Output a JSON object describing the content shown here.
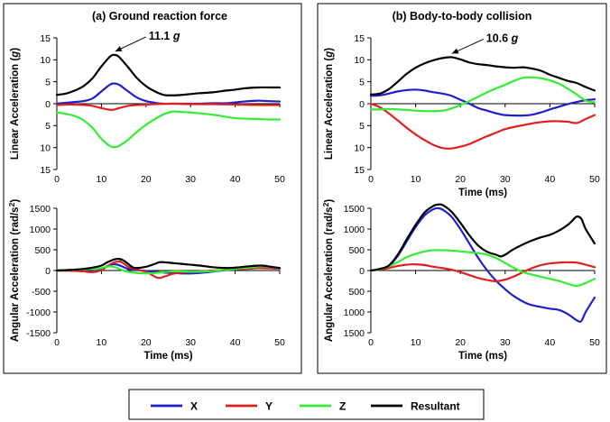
{
  "chart_data": [
    {
      "type": "line",
      "title": "(a) Ground reaction force",
      "xlabel": "",
      "ylabel": "Linear Acceleration (g)",
      "ylabel_unit": "g",
      "xlim": [
        0,
        50
      ],
      "ylim": [
        -15,
        15
      ],
      "xticks": [
        0,
        10,
        20,
        30,
        40,
        50
      ],
      "yticks": [
        -15,
        -10,
        -5,
        0,
        5,
        10,
        15
      ],
      "ytick_labels": [
        "15",
        "10",
        "5",
        "0",
        "5",
        "10",
        "15"
      ],
      "annotation": {
        "value": "11.1",
        "unit": "g",
        "x": 12.5,
        "y": 11.1
      },
      "series": [
        {
          "name": "X",
          "color": "#1f1fcf",
          "x": [
            0,
            2,
            4,
            6,
            8,
            10,
            12,
            13,
            14,
            16,
            18,
            20,
            22,
            24,
            26,
            28,
            30,
            32,
            35,
            38,
            40,
            42,
            45,
            47,
            50
          ],
          "y": [
            0,
            0.2,
            0.4,
            0.6,
            1.2,
            2.8,
            4.4,
            4.6,
            4.3,
            2.8,
            1.4,
            0.6,
            0.2,
            0,
            0,
            0,
            0,
            0,
            0.1,
            0.1,
            0.3,
            0.5,
            0.7,
            0.6,
            0.5
          ]
        },
        {
          "name": "Y",
          "color": "#e02020",
          "x": [
            0,
            2,
            4,
            6,
            8,
            10,
            12,
            13,
            14,
            16,
            18,
            20,
            22,
            26,
            30,
            35,
            40,
            45,
            50
          ],
          "y": [
            -0.3,
            -0.2,
            -0.2,
            -0.3,
            -0.5,
            -1.0,
            -1.4,
            -1.3,
            -1.0,
            -0.5,
            -0.3,
            -0.2,
            -0.1,
            0,
            -0.1,
            -0.1,
            -0.2,
            -0.3,
            -0.3
          ]
        },
        {
          "name": "Z",
          "color": "#33ee33",
          "x": [
            0,
            2,
            4,
            6,
            8,
            10,
            12,
            13,
            14,
            16,
            18,
            20,
            22,
            24,
            26,
            28,
            30,
            32,
            35,
            38,
            40,
            42,
            45,
            48,
            50
          ],
          "y": [
            -2,
            -2.3,
            -2.8,
            -3.8,
            -5.5,
            -8,
            -9.7,
            -9.9,
            -9.6,
            -8.2,
            -6.4,
            -4.8,
            -3.5,
            -2.4,
            -1.8,
            -1.9,
            -2,
            -2.2,
            -2.5,
            -3,
            -3.3,
            -3.4,
            -3.5,
            -3.6,
            -3.6
          ]
        },
        {
          "name": "Resultant",
          "color": "#000000",
          "x": [
            0,
            2,
            4,
            6,
            8,
            10,
            12,
            13,
            14,
            16,
            18,
            20,
            22,
            24,
            26,
            28,
            30,
            32,
            35,
            38,
            40,
            42,
            45,
            48,
            50
          ],
          "y": [
            2,
            2.3,
            3,
            4,
            5.8,
            8.5,
            10.8,
            11.1,
            10.6,
            8.3,
            5.8,
            4,
            2.8,
            2,
            1.9,
            2,
            2.2,
            2.4,
            2.6,
            3,
            3.2,
            3.5,
            3.7,
            3.7,
            3.7
          ]
        }
      ]
    },
    {
      "type": "line",
      "title": "(b) Body-to-body collision",
      "xlabel": "Time (ms)",
      "ylabel": "Linear Acceleration (g)",
      "ylabel_unit": "g",
      "xlim": [
        0,
        50
      ],
      "ylim": [
        -15,
        15
      ],
      "xticks": [
        0,
        10,
        20,
        30,
        40,
        50
      ],
      "yticks": [
        -15,
        -10,
        -5,
        0,
        5,
        10,
        15
      ],
      "ytick_labels": [
        "15",
        "10",
        "5",
        "0",
        "5",
        "10",
        "15"
      ],
      "annotation": {
        "value": "10.6",
        "unit": "g",
        "x": 17.5,
        "y": 10.6
      },
      "series": [
        {
          "name": "X",
          "color": "#1f1fcf",
          "x": [
            0,
            2,
            4,
            6,
            8,
            10,
            12,
            14,
            16,
            18,
            20,
            22,
            24,
            26,
            28,
            30,
            32,
            34,
            36,
            38,
            40,
            42,
            44,
            46,
            48,
            50
          ],
          "y": [
            1.8,
            1.9,
            2.3,
            2.8,
            3.1,
            3.2,
            3,
            2.6,
            2.3,
            1.8,
            0.9,
            0,
            -1,
            -1.6,
            -2.2,
            -2.6,
            -2.7,
            -2.7,
            -2.5,
            -2,
            -1.3,
            -0.7,
            -0.1,
            0.4,
            0.8,
            1
          ]
        },
        {
          "name": "Y",
          "color": "#e02020",
          "x": [
            0,
            2,
            4,
            6,
            8,
            10,
            12,
            14,
            16,
            18,
            20,
            22,
            24,
            26,
            28,
            30,
            32,
            34,
            36,
            38,
            40,
            42,
            44,
            46,
            48,
            50
          ],
          "y": [
            0,
            -0.8,
            -2.2,
            -3.8,
            -5.5,
            -7,
            -8.3,
            -9.4,
            -10.1,
            -10.2,
            -9.8,
            -9.2,
            -8.3,
            -7.4,
            -6.6,
            -5.8,
            -5.3,
            -4.9,
            -4.5,
            -4.2,
            -4,
            -4,
            -4.1,
            -4.4,
            -3.5,
            -2.6
          ]
        },
        {
          "name": "Z",
          "color": "#33ee33",
          "x": [
            0,
            2,
            4,
            6,
            8,
            10,
            12,
            14,
            16,
            18,
            20,
            22,
            24,
            26,
            28,
            30,
            32,
            34,
            36,
            38,
            40,
            42,
            44,
            46,
            48,
            50
          ],
          "y": [
            -1.3,
            -1.3,
            -1.2,
            -1.3,
            -1.4,
            -1.6,
            -1.7,
            -1.7,
            -1.6,
            -1.1,
            -0.3,
            0.6,
            1.6,
            2.6,
            3.5,
            4.3,
            5.2,
            5.9,
            6,
            5.8,
            5.3,
            4.6,
            3.4,
            2.1,
            0.7,
            0.3
          ]
        },
        {
          "name": "Resultant",
          "color": "#000000",
          "x": [
            0,
            2,
            4,
            6,
            8,
            10,
            12,
            14,
            16,
            18,
            20,
            22,
            24,
            26,
            28,
            30,
            32,
            34,
            36,
            38,
            40,
            42,
            44,
            46,
            48,
            50
          ],
          "y": [
            2.1,
            2.3,
            3.3,
            5,
            6.8,
            8.2,
            9.2,
            9.9,
            10.4,
            10.6,
            10.1,
            9.4,
            9,
            8.8,
            8.5,
            8.3,
            8.2,
            8.3,
            8,
            7.5,
            6.6,
            5.9,
            5.2,
            4.7,
            3.8,
            3
          ]
        }
      ]
    },
    {
      "type": "line",
      "title": "",
      "xlabel": "Time (ms)",
      "ylabel": "Angular Acceleration (rad/s2)",
      "ylabel_unit": "rad/s",
      "ylabel_sup": "2",
      "xlim": [
        0,
        50
      ],
      "ylim": [
        -1500,
        1500
      ],
      "xticks": [
        0,
        10,
        20,
        30,
        40,
        50
      ],
      "yticks": [
        -1500,
        -1000,
        -500,
        0,
        500,
        1000,
        1500
      ],
      "ytick_labels": [
        "-1500",
        "-1000",
        "-500",
        "0",
        "500",
        "1000",
        "1500"
      ],
      "series": [
        {
          "name": "X",
          "color": "#1f1fcf",
          "x": [
            0,
            2,
            4,
            6,
            8,
            10,
            11,
            12,
            13,
            14,
            15,
            16,
            17,
            18,
            20,
            22,
            24,
            26,
            28,
            30,
            32,
            34,
            36,
            38,
            40,
            42,
            44,
            46,
            48,
            50
          ],
          "y": [
            0,
            5,
            10,
            -10,
            -20,
            20,
            90,
            140,
            150,
            130,
            80,
            40,
            20,
            10,
            -10,
            -30,
            -50,
            -60,
            -70,
            -70,
            -60,
            -40,
            -10,
            10,
            30,
            40,
            50,
            80,
            70,
            50
          ]
        },
        {
          "name": "Y",
          "color": "#e02020",
          "x": [
            0,
            2,
            4,
            6,
            8,
            10,
            11,
            12,
            13,
            14,
            15,
            16,
            17,
            18,
            20,
            22,
            23,
            24,
            26,
            28,
            30,
            32,
            35,
            38,
            40,
            42,
            45,
            48,
            50
          ],
          "y": [
            0,
            -5,
            -10,
            -20,
            -40,
            10,
            80,
            150,
            200,
            220,
            170,
            90,
            50,
            20,
            -30,
            -150,
            -180,
            -150,
            -80,
            -50,
            -30,
            -20,
            0,
            20,
            30,
            40,
            60,
            50,
            40
          ]
        },
        {
          "name": "Z",
          "color": "#33ee33",
          "x": [
            0,
            2,
            4,
            6,
            8,
            10,
            11,
            12,
            13,
            14,
            15,
            16,
            18,
            20,
            22,
            24,
            26,
            28,
            30,
            32,
            34,
            36,
            38,
            40,
            42,
            44,
            46,
            48,
            50
          ],
          "y": [
            0,
            10,
            20,
            30,
            40,
            60,
            90,
            100,
            80,
            40,
            0,
            -30,
            -60,
            -70,
            -60,
            -40,
            -20,
            -20,
            -30,
            -30,
            -20,
            0,
            20,
            40,
            60,
            80,
            100,
            80,
            50
          ]
        },
        {
          "name": "Resultant",
          "color": "#000000",
          "x": [
            0,
            2,
            4,
            6,
            8,
            10,
            11,
            12,
            13,
            14,
            15,
            16,
            17,
            18,
            20,
            22,
            23,
            24,
            26,
            28,
            30,
            32,
            35,
            38,
            40,
            42,
            44,
            46,
            48,
            50
          ],
          "y": [
            0,
            10,
            20,
            40,
            70,
            120,
            180,
            230,
            270,
            280,
            240,
            160,
            80,
            60,
            90,
            160,
            200,
            200,
            180,
            160,
            140,
            120,
            80,
            60,
            70,
            90,
            110,
            120,
            90,
            60
          ]
        }
      ]
    },
    {
      "type": "line",
      "title": "",
      "xlabel": "Time (ms)",
      "ylabel": "Angular Acceleration (rad/s2)",
      "ylabel_unit": "rad/s",
      "ylabel_sup": "2",
      "xlim": [
        0,
        50
      ],
      "ylim": [
        -1500,
        1500
      ],
      "xticks": [
        0,
        10,
        20,
        30,
        40,
        50
      ],
      "yticks": [
        -1500,
        -1000,
        -500,
        0,
        500,
        1000,
        1500
      ],
      "ytick_labels": [
        "1500",
        "1000",
        "500",
        "0",
        "500",
        "1000",
        "1500"
      ],
      "series": [
        {
          "name": "X",
          "color": "#1f1fcf",
          "x": [
            0,
            2,
            4,
            6,
            8,
            10,
            12,
            14,
            15,
            16,
            18,
            20,
            22,
            24,
            26,
            28,
            30,
            32,
            35,
            38,
            40,
            42,
            44,
            46,
            47,
            48,
            50
          ],
          "y": [
            0,
            30,
            100,
            350,
            700,
            1050,
            1330,
            1480,
            1500,
            1470,
            1300,
            1000,
            650,
            300,
            0,
            -250,
            -450,
            -620,
            -800,
            -880,
            -920,
            -950,
            -1050,
            -1200,
            -1220,
            -1000,
            -650
          ]
        },
        {
          "name": "Y",
          "color": "#e02020",
          "x": [
            0,
            2,
            4,
            6,
            8,
            10,
            12,
            14,
            16,
            18,
            20,
            22,
            24,
            26,
            28,
            30,
            32,
            34,
            36,
            38,
            40,
            42,
            44,
            46,
            48,
            50
          ],
          "y": [
            0,
            20,
            60,
            110,
            140,
            150,
            130,
            90,
            60,
            20,
            -40,
            -110,
            -180,
            -230,
            -260,
            -220,
            -140,
            -40,
            60,
            130,
            170,
            190,
            200,
            190,
            140,
            80
          ]
        },
        {
          "name": "Z",
          "color": "#33ee33",
          "x": [
            0,
            2,
            4,
            6,
            8,
            10,
            12,
            14,
            16,
            18,
            20,
            22,
            24,
            26,
            28,
            30,
            32,
            34,
            36,
            38,
            40,
            42,
            44,
            46,
            48,
            50
          ],
          "y": [
            0,
            30,
            100,
            200,
            320,
            400,
            460,
            490,
            490,
            480,
            460,
            440,
            420,
            380,
            300,
            180,
            60,
            -40,
            -100,
            -150,
            -200,
            -250,
            -320,
            -370,
            -300,
            -200
          ]
        },
        {
          "name": "Resultant",
          "color": "#000000",
          "x": [
            0,
            2,
            4,
            6,
            8,
            10,
            12,
            14,
            15,
            16,
            18,
            20,
            22,
            24,
            26,
            28,
            29,
            30,
            32,
            35,
            38,
            40,
            42,
            44,
            45,
            46,
            47,
            48,
            50
          ],
          "y": [
            0,
            40,
            120,
            380,
            750,
            1100,
            1400,
            1560,
            1590,
            1580,
            1420,
            1150,
            850,
            600,
            450,
            380,
            340,
            380,
            520,
            680,
            800,
            860,
            960,
            1100,
            1200,
            1300,
            1250,
            1000,
            650
          ]
        }
      ]
    }
  ],
  "legend": {
    "items": [
      {
        "label": "X",
        "color": "#1f1fcf"
      },
      {
        "label": "Y",
        "color": "#e02020"
      },
      {
        "label": "Z",
        "color": "#33ee33"
      },
      {
        "label": "Resultant",
        "color": "#000000"
      }
    ]
  }
}
